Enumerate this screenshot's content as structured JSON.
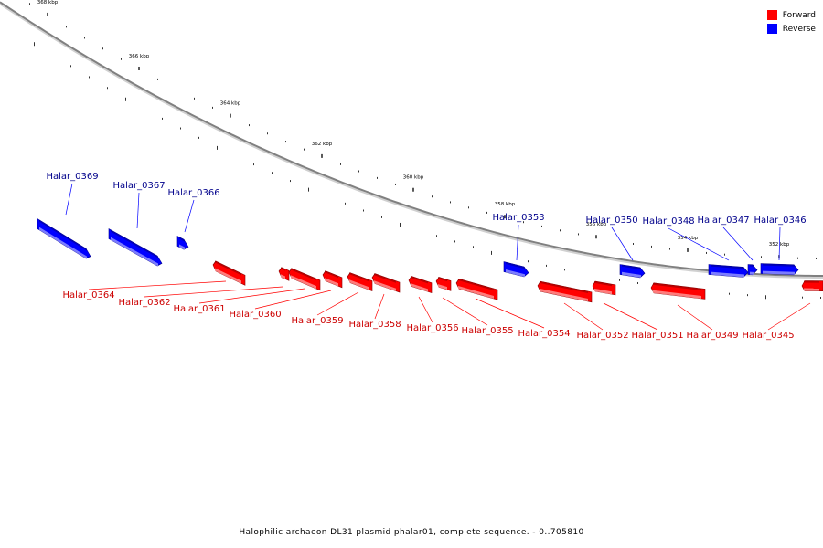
{
  "caption": "Halophilic archaeon DL31 plasmid phalar01, complete sequence. - 0..705810",
  "legend": {
    "forward_label": "Forward",
    "reverse_label": "Reverse",
    "forward_color": "#ff0000",
    "reverse_color": "#0000ff"
  },
  "colors": {
    "forward_label": "#cc0000",
    "reverse_label": "#00008b",
    "backbone": "#808080"
  },
  "ticks": [
    {
      "label": "368 kbp",
      "kbp": 368
    },
    {
      "label": "366 kbp",
      "kbp": 366
    },
    {
      "label": "364 kbp",
      "kbp": 364
    },
    {
      "label": "362 kbp",
      "kbp": 362
    },
    {
      "label": "360 kbp",
      "kbp": 360
    },
    {
      "label": "358 kbp",
      "kbp": 358
    },
    {
      "label": "356 kbp",
      "kbp": 356
    },
    {
      "label": "354 kbp",
      "kbp": 354
    },
    {
      "label": "352 kbp",
      "kbp": 352
    }
  ],
  "genes": [
    {
      "name": "Halar_0369",
      "strand": "reverse"
    },
    {
      "name": "Halar_0367",
      "strand": "reverse"
    },
    {
      "name": "Halar_0366",
      "strand": "reverse"
    },
    {
      "name": "Halar_0353",
      "strand": "reverse"
    },
    {
      "name": "Halar_0350",
      "strand": "reverse"
    },
    {
      "name": "Halar_0348",
      "strand": "reverse"
    },
    {
      "name": "Halar_0347",
      "strand": "reverse"
    },
    {
      "name": "Halar_0346",
      "strand": "reverse"
    },
    {
      "name": "Halar_0364",
      "strand": "forward"
    },
    {
      "name": "Halar_0362",
      "strand": "forward"
    },
    {
      "name": "Halar_0361",
      "strand": "forward"
    },
    {
      "name": "Halar_0360",
      "strand": "forward"
    },
    {
      "name": "Halar_0359",
      "strand": "forward"
    },
    {
      "name": "Halar_0358",
      "strand": "forward"
    },
    {
      "name": "Halar_0356",
      "strand": "forward"
    },
    {
      "name": "Halar_0355",
      "strand": "forward"
    },
    {
      "name": "Halar_0354",
      "strand": "forward"
    },
    {
      "name": "Halar_0352",
      "strand": "forward"
    },
    {
      "name": "Halar_0351",
      "strand": "forward"
    },
    {
      "name": "Halar_0349",
      "strand": "forward"
    },
    {
      "name": "Halar_0345",
      "strand": "forward"
    }
  ]
}
